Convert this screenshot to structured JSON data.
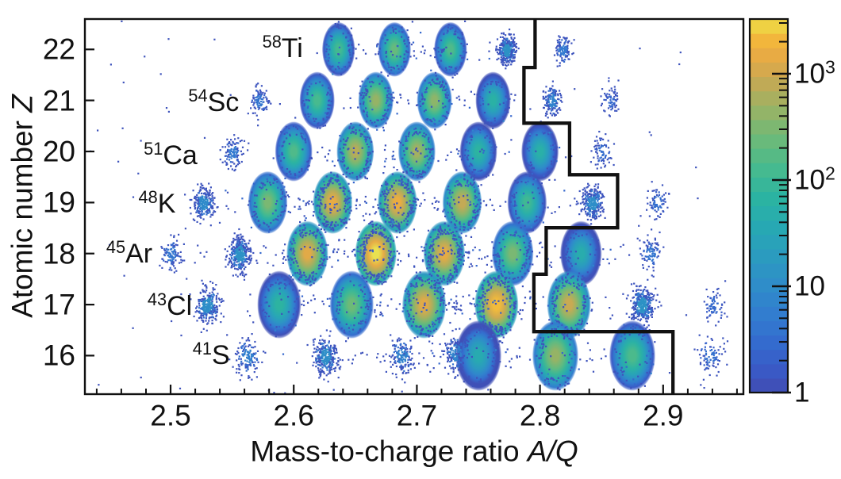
{
  "chart_data": {
    "type": "heatmap",
    "subtype": "2d-histogram-particle-identification",
    "xlabel": "Mass-to-charge ratio",
    "xlabel_var": "A/Q",
    "ylabel": "Atomic number",
    "ylabel_var": "Z",
    "xlim": [
      2.4304,
      2.9652
    ],
    "ylim": [
      15.245,
      22.595
    ],
    "grid": false,
    "x_major_ticks": [
      2.5,
      2.6,
      2.7,
      2.8,
      2.9
    ],
    "x_tick_labels": [
      "2.5",
      "2.6",
      "2.7",
      "2.8",
      "2.9"
    ],
    "x_minor_step": 0.02,
    "y_major_ticks": [
      16,
      17,
      18,
      19,
      20,
      21,
      22
    ],
    "y_tick_labels": [
      "16",
      "17",
      "18",
      "19",
      "20",
      "21",
      "22"
    ],
    "colorbar": {
      "position": "right",
      "scale": "log",
      "min": 1,
      "max": 3270,
      "major_ticks": [
        1,
        10,
        100,
        1000
      ],
      "tick_labels": [
        {
          "base": "1",
          "exp": ""
        },
        {
          "base": "10",
          "exp": ""
        },
        {
          "base": "10",
          "exp": "2"
        },
        {
          "base": "10",
          "exp": "3"
        }
      ],
      "colormap": "parula",
      "stops": [
        [
          0.0,
          "#414cb2"
        ],
        [
          0.06,
          "#3a5ac6"
        ],
        [
          0.12,
          "#3568cd"
        ],
        [
          0.2,
          "#327bd0"
        ],
        [
          0.28,
          "#2f8bca"
        ],
        [
          0.36,
          "#2b9ac0"
        ],
        [
          0.44,
          "#27a8b4"
        ],
        [
          0.52,
          "#2bb3a2"
        ],
        [
          0.6,
          "#46ba8f"
        ],
        [
          0.68,
          "#6cba79"
        ],
        [
          0.76,
          "#98b365"
        ],
        [
          0.82,
          "#bcaa58"
        ],
        [
          0.88,
          "#dfa94a"
        ],
        [
          0.93,
          "#f1ae3d"
        ],
        [
          0.97,
          "#f3c73b"
        ],
        [
          1.0,
          "#e8e352"
        ]
      ]
    },
    "series": [
      {
        "element": "Ti",
        "z": 22,
        "isotopes": [
          {
            "a": 58,
            "aq": 2.6364,
            "count": 120
          },
          {
            "a": 59,
            "aq": 2.6818,
            "count": 220
          },
          {
            "a": 60,
            "aq": 2.7273,
            "count": 150
          },
          {
            "a": 61,
            "aq": 2.7727,
            "count": 35
          },
          {
            "a": 62,
            "aq": 2.8182,
            "count": 9
          }
        ]
      },
      {
        "element": "Sc",
        "z": 21,
        "isotopes": [
          {
            "a": 54,
            "aq": 2.5714,
            "count": 7
          },
          {
            "a": 55,
            "aq": 2.619,
            "count": 130
          },
          {
            "a": 56,
            "aq": 2.6667,
            "count": 450
          },
          {
            "a": 57,
            "aq": 2.7143,
            "count": 400
          },
          {
            "a": 58,
            "aq": 2.7619,
            "count": 60
          },
          {
            "a": 59,
            "aq": 2.8095,
            "count": 14
          },
          {
            "a": 60,
            "aq": 2.8571,
            "count": 4
          }
        ]
      },
      {
        "element": "Ca",
        "z": 20,
        "isotopes": [
          {
            "a": 51,
            "aq": 2.55,
            "count": 9
          },
          {
            "a": 52,
            "aq": 2.6,
            "count": 150
          },
          {
            "a": 53,
            "aq": 2.65,
            "count": 700
          },
          {
            "a": 54,
            "aq": 2.7,
            "count": 550
          },
          {
            "a": 55,
            "aq": 2.75,
            "count": 70
          },
          {
            "a": 56,
            "aq": 2.8,
            "count": 55
          },
          {
            "a": 57,
            "aq": 2.85,
            "count": 5
          }
        ]
      },
      {
        "element": "K",
        "z": 19,
        "isotopes": [
          {
            "a": 48,
            "aq": 2.5263,
            "count": 22
          },
          {
            "a": 49,
            "aq": 2.5789,
            "count": 300
          },
          {
            "a": 50,
            "aq": 2.6316,
            "count": 1500
          },
          {
            "a": 51,
            "aq": 2.6842,
            "count": 1600
          },
          {
            "a": 52,
            "aq": 2.7368,
            "count": 850
          },
          {
            "a": 53,
            "aq": 2.7895,
            "count": 110
          },
          {
            "a": 54,
            "aq": 2.8421,
            "count": 28
          },
          {
            "a": 55,
            "aq": 2.8947,
            "count": 5
          }
        ]
      },
      {
        "element": "Ar",
        "z": 18,
        "isotopes": [
          {
            "a": 45,
            "aq": 2.5,
            "count": 8
          },
          {
            "a": 46,
            "aq": 2.5556,
            "count": 35
          },
          {
            "a": 47,
            "aq": 2.6111,
            "count": 1300
          },
          {
            "a": 48,
            "aq": 2.6667,
            "count": 3200
          },
          {
            "a": 49,
            "aq": 2.7222,
            "count": 1400
          },
          {
            "a": 50,
            "aq": 2.7778,
            "count": 300
          },
          {
            "a": 51,
            "aq": 2.8333,
            "count": 45
          },
          {
            "a": 52,
            "aq": 2.8889,
            "count": 7
          }
        ]
      },
      {
        "element": "Cl",
        "z": 17,
        "isotopes": [
          {
            "a": 43,
            "aq": 2.5294,
            "count": 28
          },
          {
            "a": 44,
            "aq": 2.5882,
            "count": 70
          },
          {
            "a": 45,
            "aq": 2.6471,
            "count": 250
          },
          {
            "a": 46,
            "aq": 2.7059,
            "count": 1300
          },
          {
            "a": 47,
            "aq": 2.7647,
            "count": 2200
          },
          {
            "a": 48,
            "aq": 2.8235,
            "count": 900
          },
          {
            "a": 49,
            "aq": 2.8824,
            "count": 35
          },
          {
            "a": 50,
            "aq": 2.9412,
            "count": 4
          }
        ]
      },
      {
        "element": "S",
        "z": 16,
        "isotopes": [
          {
            "a": 41,
            "aq": 2.5625,
            "count": 12
          },
          {
            "a": 42,
            "aq": 2.625,
            "count": 28
          },
          {
            "a": 43,
            "aq": 2.6875,
            "count": 14
          },
          {
            "a": 44,
            "aq": 2.75,
            "count": 40
          },
          {
            "a": 45,
            "aq": 2.8125,
            "count": 450
          },
          {
            "a": 46,
            "aq": 2.875,
            "count": 140
          },
          {
            "a": 47,
            "aq": 2.9375,
            "count": 6
          }
        ]
      }
    ],
    "extra_clusters": [
      {
        "aq": 2.731,
        "z": 16.07,
        "count": 15
      }
    ],
    "isotope_labels": [
      {
        "mass": "58",
        "element": "Ti",
        "aq": 2.591,
        "z": 22.02
      },
      {
        "mass": "54",
        "element": "Sc",
        "aq": 2.535,
        "z": 20.96
      },
      {
        "mass": "51",
        "element": "Ca",
        "aq": 2.5,
        "z": 19.92
      },
      {
        "mass": "48",
        "element": "K",
        "aq": 2.489,
        "z": 18.98
      },
      {
        "mass": "45",
        "element": "Ar",
        "aq": 2.4665,
        "z": 18.0
      },
      {
        "mass": "43",
        "element": "Cl",
        "aq": 2.4994,
        "z": 16.97
      },
      {
        "mass": "41",
        "element": "S",
        "aq": 2.533,
        "z": 16.0
      }
    ],
    "gate_aq_z": [
      [
        2.796,
        22.595
      ],
      [
        2.796,
        21.645
      ],
      [
        2.787,
        21.645
      ],
      [
        2.787,
        20.555
      ],
      [
        2.824,
        20.555
      ],
      [
        2.824,
        19.545
      ],
      [
        2.863,
        19.545
      ],
      [
        2.863,
        18.505
      ],
      [
        2.805,
        18.505
      ],
      [
        2.805,
        17.595
      ],
      [
        2.795,
        17.595
      ],
      [
        2.795,
        16.47
      ],
      [
        2.908,
        16.47
      ],
      [
        2.908,
        15.245
      ]
    ],
    "gate_color": "#111111",
    "render_hints": {
      "seed": 1234,
      "sigma_x_base": 6.3,
      "sigma_x_slope": 0.42,
      "sigma_y_base": 10.5,
      "sigma_y_slope": 0.5,
      "solid_min_count": 40,
      "row_scatter": [
        {
          "z": 22,
          "range": [
            2.61,
            2.79
          ],
          "n": 50
        },
        {
          "z": 21,
          "range": [
            2.57,
            2.8
          ],
          "n": 60
        },
        {
          "z": 20,
          "range": [
            2.56,
            2.84
          ],
          "n": 75
        },
        {
          "z": 19,
          "range": [
            2.5,
            2.86
          ],
          "n": 160
        },
        {
          "z": 18,
          "range": [
            2.49,
            2.88
          ],
          "n": 180
        },
        {
          "z": 17,
          "range": [
            2.51,
            2.91
          ],
          "n": 150
        },
        {
          "z": 16,
          "range": [
            2.54,
            2.93
          ],
          "n": 80
        }
      ],
      "sprinkle_n": 130
    }
  }
}
